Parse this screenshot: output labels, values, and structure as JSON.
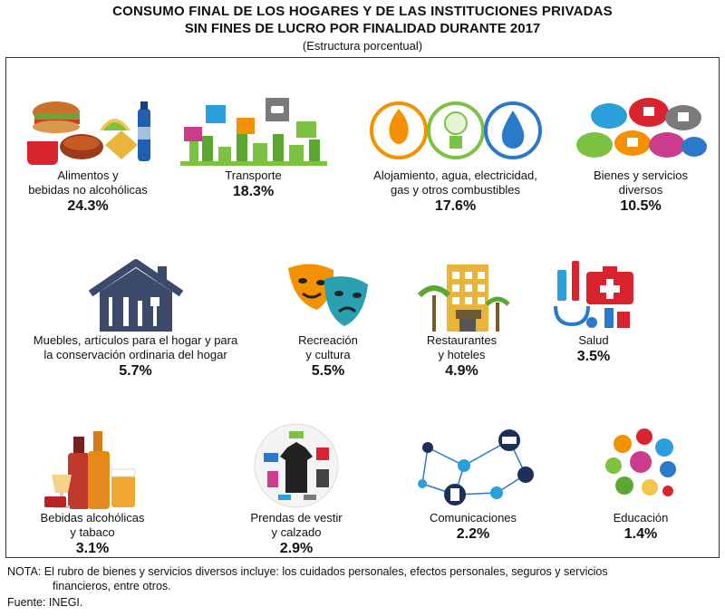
{
  "header": {
    "line1": "CONSUMO FINAL DE LOS HOGARES Y DE LAS INSTITUCIONES PRIVADAS",
    "line2": "SIN FINES DE LUCRO POR FINALIDAD DURANTE 2017",
    "line3": "(Estructura porcentual)"
  },
  "chart_data": {
    "type": "table",
    "title": "CONSUMO FINAL DE LOS HOGARES Y DE LAS INSTITUCIONES PRIVADAS SIN FINES DE LUCRO POR FINALIDAD DURANTE 2017",
    "subtitle": "(Estructura porcentual)",
    "unit": "%",
    "categories": [
      "Alimentos y bebidas no alcohólicas",
      "Transporte",
      "Alojamiento, agua, electricidad, gas y otros combustibles",
      "Bienes y servicios diversos",
      "Muebles, artículos para el hogar y para la conservación ordinaria del hogar",
      "Recreación y cultura",
      "Restaurantes y hoteles",
      "Salud",
      "Bebidas alcohólicas y tabaco",
      "Prendas de vestir y calzado",
      "Comunicaciones",
      "Educación"
    ],
    "values": [
      24.3,
      18.3,
      17.6,
      10.5,
      5.7,
      5.5,
      4.9,
      3.5,
      3.1,
      2.9,
      2.2,
      1.4
    ]
  },
  "items": [
    {
      "label": "Alimentos y\nbebidas no alcohólicas",
      "value": "24.3%",
      "icon": "food-icon"
    },
    {
      "label": "Transporte",
      "value": "18.3%",
      "icon": "transport-icon"
    },
    {
      "label": "Alojamiento, agua, electricidad,\ngas y otros combustibles",
      "value": "17.6%",
      "icon": "utilities-icon"
    },
    {
      "label": "Bienes y servicios\ndiversos",
      "value": "10.5%",
      "icon": "services-cloud-icon"
    },
    {
      "label": "Muebles, artículos para el hogar y para\nla conservación ordinaria del hogar",
      "value": "5.7%",
      "icon": "house-tools-icon"
    },
    {
      "label": "Recreación\ny cultura",
      "value": "5.5%",
      "icon": "theater-masks-icon"
    },
    {
      "label": "Restaurantes\ny hoteles",
      "value": "4.9%",
      "icon": "hotel-icon"
    },
    {
      "label": "Salud",
      "value": "3.5%",
      "icon": "health-icon"
    },
    {
      "label": "Bebidas alcohólicas\ny tabaco",
      "value": "3.1%",
      "icon": "alcohol-icon"
    },
    {
      "label": "Prendas de vestir\ny calzado",
      "value": "2.9%",
      "icon": "clothing-icon"
    },
    {
      "label": "Comunicaciones",
      "value": "2.2%",
      "icon": "network-icon"
    },
    {
      "label": "Educación",
      "value": "1.4%",
      "icon": "education-icon"
    }
  ],
  "footer": {
    "note_line1": "NOTA: El rubro de bienes y servicios diversos incluye: los cuidados personales, efectos personales, seguros y servicios",
    "note_line2": "financieros, entre otros.",
    "source": "Fuente: INEGI."
  },
  "colors": {
    "orange": "#f39200",
    "green": "#7dc242",
    "blue": "#2b7ac9",
    "navy": "#3b4a6b",
    "red": "#d9232e"
  }
}
